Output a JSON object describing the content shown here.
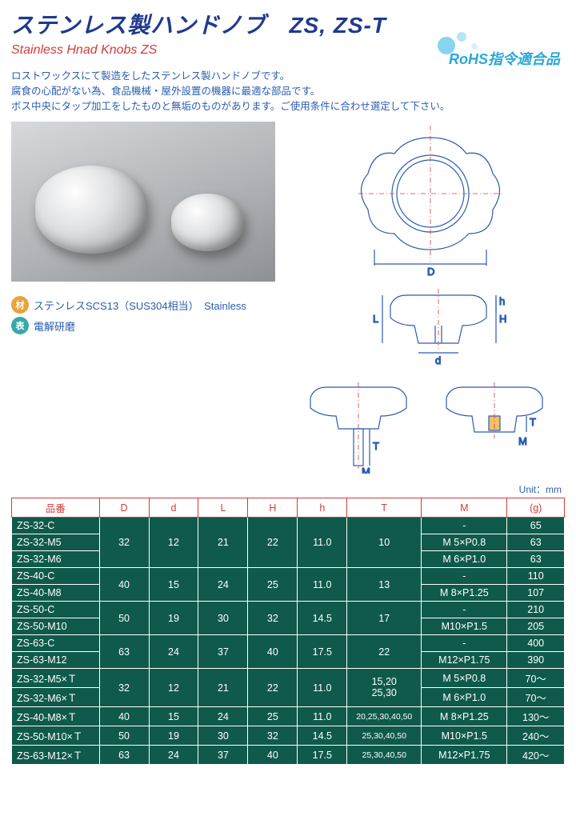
{
  "title_jp": "ステンレス製ハンドノブ　ZS, ZS-T",
  "title_en": "Stainless Hnad Knobs  ZS",
  "rohs": "RoHS指令適合品",
  "desc1": "ロストワックスにて製造をしたステンレス製ハンドノブです。",
  "desc2": "腐食の心配がない為、食品機械・屋外設置の機器に最適な部品です。",
  "desc3": "ボス中央にタップ加工をしたものと無垢のものがあります。ご使用条件に合わせ選定して下さい。",
  "mat_label": "材",
  "mat_text": "ステンレスSCS13（SUS304相当）　Stainless",
  "fin_label": "表",
  "fin_text": "電解研磨",
  "unit": "Unit：mm",
  "headers": {
    "pn": "品番",
    "D": "D",
    "d": "d",
    "L": "L",
    "H": "H",
    "h": "h",
    "T": "T",
    "M": "M",
    "g": "(g)"
  },
  "dims": {
    "D": "D",
    "d": "d",
    "L": "L",
    "H": "H",
    "h": "h",
    "T": "T",
    "M": "M"
  },
  "rows": [
    {
      "pn": "ZS-32-C",
      "D": "32",
      "d": "12",
      "L": "21",
      "H": "22",
      "h": "11.0",
      "T": "10",
      "M": "-",
      "g": "65",
      "grp": 1
    },
    {
      "pn": "ZS-32-M5",
      "D": "",
      "d": "",
      "L": "",
      "H": "",
      "h": "",
      "T": "",
      "M": "M 5×P0.8",
      "g": "63",
      "grp": 1
    },
    {
      "pn": "ZS-32-M6",
      "D": "",
      "d": "",
      "L": "",
      "H": "",
      "h": "",
      "T": "",
      "M": "M 6×P1.0",
      "g": "63",
      "grp": 1
    },
    {
      "pn": "ZS-40-C",
      "D": "40",
      "d": "15",
      "L": "24",
      "H": "25",
      "h": "11.0",
      "T": "13",
      "M": "-",
      "g": "110",
      "grp": 2
    },
    {
      "pn": "ZS-40-M8",
      "D": "",
      "d": "",
      "L": "",
      "H": "",
      "h": "",
      "T": "",
      "M": "M 8×P1.25",
      "g": "107",
      "grp": 2
    },
    {
      "pn": "ZS-50-C",
      "D": "50",
      "d": "19",
      "L": "30",
      "H": "32",
      "h": "14.5",
      "T": "17",
      "M": "-",
      "g": "210",
      "grp": 3
    },
    {
      "pn": "ZS-50-M10",
      "D": "",
      "d": "",
      "L": "",
      "H": "",
      "h": "",
      "T": "",
      "M": "M10×P1.5",
      "g": "205",
      "grp": 3
    },
    {
      "pn": "ZS-63-C",
      "D": "63",
      "d": "24",
      "L": "37",
      "H": "40",
      "h": "17.5",
      "T": "22",
      "M": "-",
      "g": "400",
      "grp": 4
    },
    {
      "pn": "ZS-63-M12",
      "D": "",
      "d": "",
      "L": "",
      "H": "",
      "h": "",
      "T": "",
      "M": "M12×P1.75",
      "g": "390",
      "grp": 4
    },
    {
      "pn": "ZS-32-M5×Ｔ",
      "D": "32",
      "d": "12",
      "L": "21",
      "H": "22",
      "h": "11.0",
      "T": "15,20\n25,30",
      "M": "M 5×P0.8",
      "g": "70～",
      "grp": 5
    },
    {
      "pn": "ZS-32-M6×Ｔ",
      "D": "",
      "d": "",
      "L": "",
      "H": "",
      "h": "",
      "T": "",
      "M": "M 6×P1.0",
      "g": "70～",
      "grp": 5
    },
    {
      "pn": "ZS-40-M8×Ｔ",
      "D": "40",
      "d": "15",
      "L": "24",
      "H": "25",
      "h": "11.0",
      "T": "20,25,30,40,50",
      "M": "M 8×P1.25",
      "g": "130～",
      "Tsmall": true
    },
    {
      "pn": "ZS-50-M10×Ｔ",
      "D": "50",
      "d": "19",
      "L": "30",
      "H": "32",
      "h": "14.5",
      "T": "25,30,40,50",
      "M": "M10×P1.5",
      "g": "240～",
      "Tsmall": true
    },
    {
      "pn": "ZS-63-M12×Ｔ",
      "D": "63",
      "d": "24",
      "L": "37",
      "H": "40",
      "h": "17.5",
      "T": "25,30,40,50",
      "M": "M12×P1.75",
      "g": "420～",
      "Tsmall": true
    }
  ]
}
